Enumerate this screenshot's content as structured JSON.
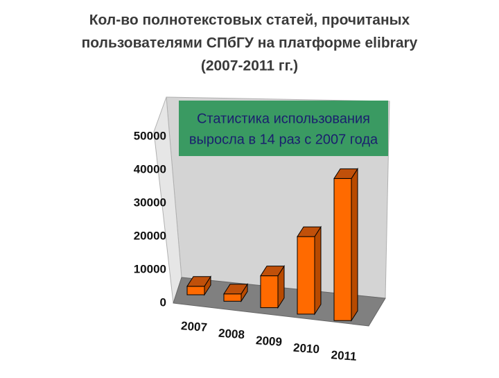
{
  "chart_data": {
    "type": "bar3d",
    "title": [
      "Кол-во полнотекстовых статей, прочитаных",
      "пользователями СПбГУ на платформе elibrary",
      "(2007-2011 гг.)"
    ],
    "annotation": [
      "Статистика использования",
      "выросла в 14 раз с 2007 года"
    ],
    "categories": [
      "2007",
      "2008",
      "2009",
      "2010",
      "2011"
    ],
    "values": [
      2800,
      2300,
      9500,
      22000,
      38500
    ],
    "color": "#ff6a00",
    "ylim": [
      0,
      50000
    ],
    "yticks": [
      0,
      10000,
      20000,
      30000,
      40000,
      50000
    ],
    "grid": false
  }
}
